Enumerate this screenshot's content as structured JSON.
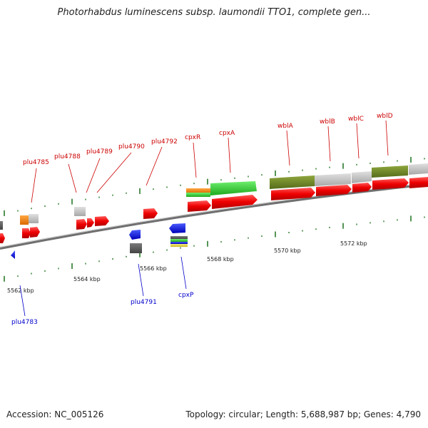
{
  "title": "Photorhabdus luminescens subsp. laumondii TTO1, complete gen...",
  "footer": {
    "accession": "Accession: NC_005126",
    "summary": "Topology: circular; Length: 5,688,987 bp; Genes: 4,790"
  },
  "colors": {
    "forward_label": "#cc0000",
    "reverse_label": "#0000cc",
    "tick": "#2a7a2a",
    "backbone": "#7a7a7a"
  },
  "scale_labels": [
    "5562 kbp",
    "5564 kbp",
    "5566 kbp",
    "5568 kbp",
    "5570 kbp",
    "5572 kbp"
  ],
  "forward_genes": [
    {
      "label": "plu4785"
    },
    {
      "label": "plu4788"
    },
    {
      "label": "plu4789"
    },
    {
      "label": "plu4790"
    },
    {
      "label": "plu4792"
    },
    {
      "label": "cpxR"
    },
    {
      "label": "cpxA"
    },
    {
      "label": "wblA"
    },
    {
      "label": "wblB"
    },
    {
      "label": "wblC"
    },
    {
      "label": "wblD"
    }
  ],
  "reverse_genes": [
    {
      "label": "plu4783"
    },
    {
      "label": "plu4791"
    },
    {
      "label": "cpxP"
    }
  ]
}
